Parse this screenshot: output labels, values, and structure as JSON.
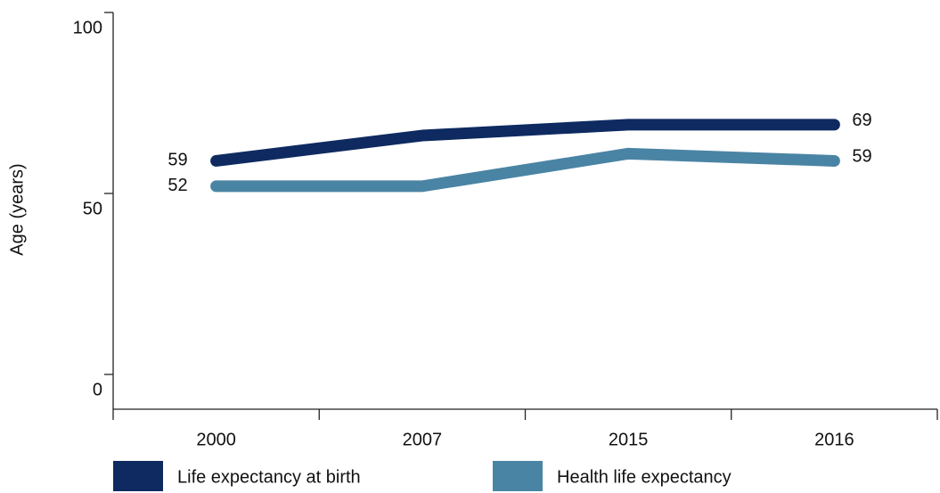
{
  "chart_data": {
    "type": "line",
    "y_label": "Age (years)",
    "categories": [
      "2000",
      "2007",
      "2015",
      "2016"
    ],
    "series": [
      {
        "name": "Life expectancy at birth",
        "color": "#0e2a60",
        "values": [
          59,
          66,
          69,
          69
        ]
      },
      {
        "name": "Health life expectancy",
        "color": "#4a84a4",
        "values": [
          52,
          52,
          61,
          59
        ]
      }
    ],
    "ylim": [
      0,
      100
    ],
    "yticks": [
      0,
      50,
      100
    ],
    "grid": false
  }
}
